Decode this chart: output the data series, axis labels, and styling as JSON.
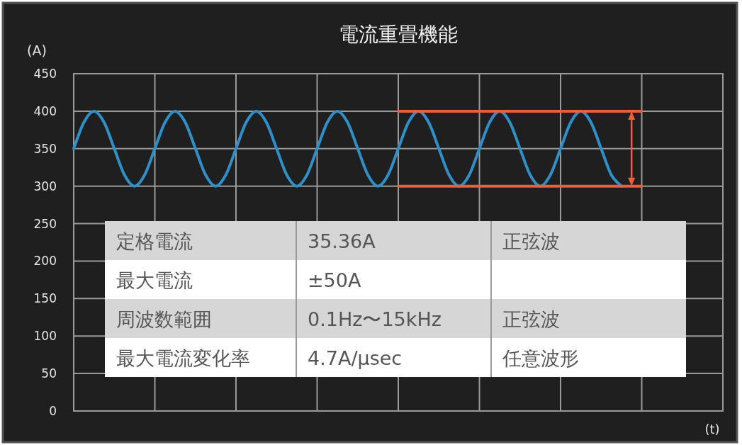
{
  "chart_data": {
    "type": "line",
    "title": "電流重畳機能",
    "ylabel": "(A)",
    "xlabel": "(t)",
    "categories": [
      null,
      null,
      null,
      null,
      null,
      null,
      null,
      null,
      null,
      null,
      null,
      null,
      null,
      null,
      null,
      null,
      null,
      null,
      null,
      null,
      null,
      null,
      null,
      null,
      null,
      null,
      null,
      null,
      null,
      null,
      null,
      null,
      null,
      null,
      null,
      null,
      null,
      null,
      null,
      null,
      null,
      null,
      null,
      null,
      null,
      null,
      null,
      null,
      null,
      null,
      null,
      null,
      null,
      null,
      null,
      null,
      null,
      null,
      null,
      null,
      null,
      null,
      null,
      null,
      null
    ],
    "series": [
      {
        "color": "#2f8fc6",
        "values": [
          350,
          385,
          400,
          385,
          350,
          315,
          300,
          315,
          350,
          385,
          400,
          385,
          350,
          315,
          300,
          315,
          350,
          385,
          400,
          385,
          350,
          315,
          300,
          315,
          350,
          385,
          400,
          385,
          350,
          315,
          300,
          315,
          350,
          385,
          400,
          385,
          350,
          315,
          300,
          315,
          350,
          385,
          400,
          385,
          350,
          315,
          300,
          315,
          350,
          385,
          400,
          385,
          350,
          315,
          300,
          null,
          null,
          null,
          null,
          null,
          null,
          null,
          null,
          null,
          null
        ]
      },
      {
        "color": "#e8603c",
        "values": [
          null,
          null,
          null,
          null,
          null,
          null,
          null,
          null,
          null,
          null,
          null,
          null,
          null,
          null,
          null,
          null,
          null,
          null,
          null,
          null,
          null,
          null,
          null,
          null,
          null,
          null,
          null,
          null,
          null,
          null,
          null,
          null,
          400,
          400,
          400,
          400,
          400,
          400,
          400,
          400,
          400,
          400,
          400,
          400,
          400,
          400,
          400,
          400,
          400,
          400,
          400,
          400,
          400,
          400,
          400,
          400,
          400,
          null,
          null,
          null,
          null,
          null,
          null,
          null,
          null
        ]
      },
      {
        "color": "#e8603c",
        "values": [
          null,
          null,
          null,
          null,
          null,
          null,
          null,
          null,
          null,
          null,
          null,
          null,
          null,
          null,
          null,
          null,
          null,
          null,
          null,
          null,
          null,
          null,
          null,
          null,
          null,
          null,
          null,
          null,
          null,
          null,
          null,
          null,
          300,
          300,
          300,
          300,
          300,
          300,
          300,
          300,
          300,
          300,
          300,
          300,
          300,
          300,
          300,
          300,
          300,
          300,
          300,
          300,
          300,
          300,
          300,
          300,
          300,
          null,
          null,
          null,
          null,
          null,
          null,
          null,
          null
        ]
      }
    ],
    "ylim": [
      0,
      450
    ],
    "yticks": [
      0,
      50,
      100,
      150,
      200,
      250,
      300,
      350,
      400,
      450
    ],
    "grid": true,
    "marker": "none",
    "line_style": "solid",
    "annotations": [
      "定格電流",
      "35.36A",
      "正弦波",
      "最大電流",
      "±50A",
      "周波数範囲",
      "0.1Hz〜15kHz",
      "正弦波",
      "最大電流変化率",
      "4.7A/μsec",
      "任意波形"
    ]
  }
}
